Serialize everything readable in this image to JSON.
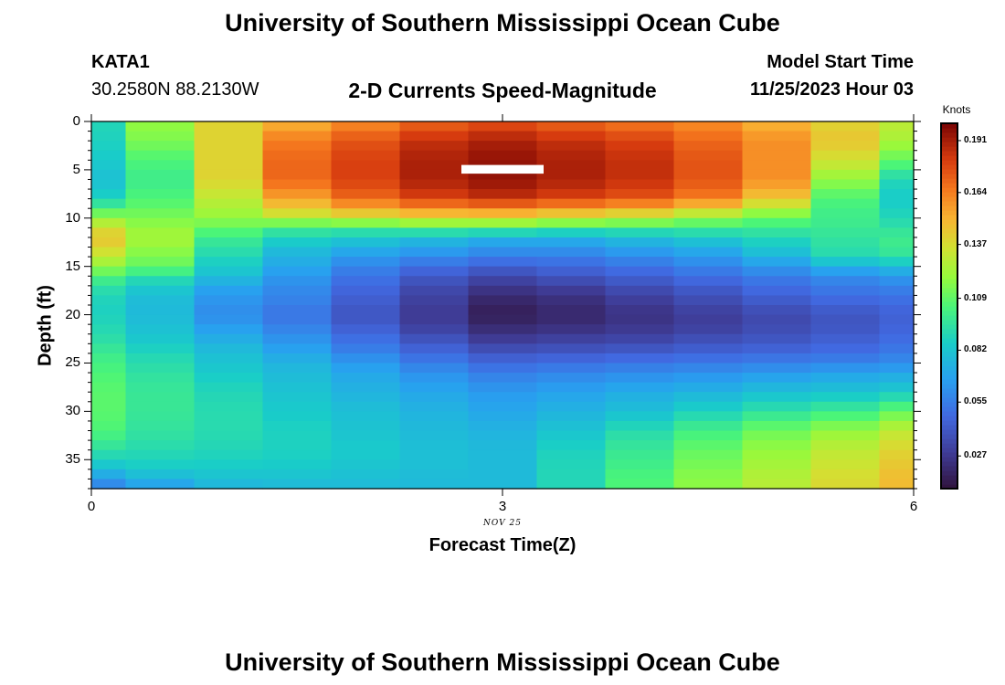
{
  "page": {
    "title_top": "University of Southern Mississippi Ocean Cube",
    "title_bottom": "University of Southern Mississippi Ocean Cube",
    "station_id": "KATA1",
    "coordinates": "30.2580N  88.2130W",
    "plot_title": "2-D Currents Speed-Magnitude",
    "model_start_label": "Model Start Time",
    "model_start_value": "11/25/2023 Hour 03",
    "date_label": "NOV 25",
    "colorbar_title": "Knots"
  },
  "chart_data": {
    "type": "heatmap",
    "title": "2-D Currents Speed-Magnitude",
    "xlabel": "Forecast Time(Z)",
    "ylabel": "Depth (ft)",
    "xlim": [
      0,
      6
    ],
    "ylim": [
      0,
      38
    ],
    "y_inverted": true,
    "x_ticks": [
      "0",
      "3",
      "6"
    ],
    "y_ticks": [
      "0",
      "5",
      "10",
      "15",
      "20",
      "25",
      "30",
      "35"
    ],
    "colorbar_ticks": [
      "0.191",
      "0.164",
      "0.137",
      "0.109",
      "0.082",
      "0.055",
      "0.027"
    ],
    "colorbar_range": [
      0.01,
      0.2
    ],
    "colorbar_label": "Knots",
    "x_centers": [
      0,
      0.5,
      1,
      1.5,
      2,
      2.5,
      3,
      3.5,
      4,
      4.5,
      5,
      5.5,
      6
    ],
    "depth_samples": [
      0,
      2,
      4,
      6,
      8,
      10,
      11,
      12,
      13,
      14,
      15,
      16,
      17,
      18,
      19,
      20,
      21,
      22,
      23,
      24,
      25,
      26,
      28,
      30,
      32,
      34,
      36,
      37,
      38
    ],
    "speed_knots": [
      [
        0.09,
        0.12,
        0.14,
        0.15,
        0.16,
        0.17,
        0.175,
        0.17,
        0.165,
        0.16,
        0.15,
        0.14,
        0.13
      ],
      [
        0.088,
        0.115,
        0.14,
        0.165,
        0.175,
        0.185,
        0.19,
        0.185,
        0.18,
        0.17,
        0.16,
        0.145,
        0.125
      ],
      [
        0.085,
        0.105,
        0.14,
        0.17,
        0.18,
        0.19,
        0.195,
        0.19,
        0.185,
        0.175,
        0.16,
        0.135,
        0.11
      ],
      [
        0.08,
        0.1,
        0.14,
        0.17,
        0.18,
        0.19,
        0.195,
        0.19,
        0.185,
        0.175,
        0.16,
        0.12,
        0.09
      ],
      [
        0.088,
        0.105,
        0.13,
        0.155,
        0.17,
        0.18,
        0.185,
        0.18,
        0.175,
        0.165,
        0.145,
        0.105,
        0.085
      ],
      [
        0.12,
        0.115,
        0.12,
        0.13,
        0.135,
        0.14,
        0.14,
        0.135,
        0.13,
        0.12,
        0.11,
        0.1,
        0.09
      ],
      [
        0.135,
        0.12,
        0.11,
        0.1,
        0.1,
        0.105,
        0.105,
        0.1,
        0.1,
        0.1,
        0.1,
        0.1,
        0.095
      ],
      [
        0.145,
        0.125,
        0.1,
        0.09,
        0.085,
        0.08,
        0.075,
        0.075,
        0.08,
        0.085,
        0.09,
        0.095,
        0.1
      ],
      [
        0.14,
        0.12,
        0.095,
        0.08,
        0.075,
        0.07,
        0.065,
        0.065,
        0.07,
        0.075,
        0.085,
        0.095,
        0.1
      ],
      [
        0.13,
        0.115,
        0.09,
        0.075,
        0.065,
        0.06,
        0.055,
        0.055,
        0.06,
        0.065,
        0.075,
        0.09,
        0.095
      ],
      [
        0.12,
        0.11,
        0.085,
        0.07,
        0.058,
        0.05,
        0.045,
        0.048,
        0.052,
        0.058,
        0.065,
        0.075,
        0.08
      ],
      [
        0.105,
        0.095,
        0.08,
        0.065,
        0.052,
        0.042,
        0.035,
        0.04,
        0.045,
        0.05,
        0.055,
        0.06,
        0.065
      ],
      [
        0.095,
        0.085,
        0.07,
        0.06,
        0.048,
        0.036,
        0.028,
        0.032,
        0.038,
        0.044,
        0.05,
        0.055,
        0.058
      ],
      [
        0.09,
        0.08,
        0.065,
        0.058,
        0.045,
        0.032,
        0.022,
        0.025,
        0.032,
        0.038,
        0.045,
        0.05,
        0.052
      ],
      [
        0.088,
        0.078,
        0.062,
        0.055,
        0.042,
        0.03,
        0.018,
        0.022,
        0.028,
        0.034,
        0.04,
        0.045,
        0.048
      ],
      [
        0.088,
        0.078,
        0.06,
        0.052,
        0.04,
        0.028,
        0.016,
        0.02,
        0.025,
        0.03,
        0.035,
        0.04,
        0.045
      ],
      [
        0.09,
        0.08,
        0.065,
        0.055,
        0.042,
        0.03,
        0.02,
        0.022,
        0.026,
        0.03,
        0.035,
        0.04,
        0.045
      ],
      [
        0.092,
        0.082,
        0.07,
        0.06,
        0.048,
        0.035,
        0.025,
        0.028,
        0.03,
        0.034,
        0.038,
        0.042,
        0.048
      ],
      [
        0.095,
        0.085,
        0.075,
        0.065,
        0.052,
        0.042,
        0.032,
        0.034,
        0.036,
        0.04,
        0.042,
        0.046,
        0.05
      ],
      [
        0.1,
        0.09,
        0.08,
        0.07,
        0.058,
        0.048,
        0.04,
        0.042,
        0.044,
        0.046,
        0.048,
        0.05,
        0.055
      ],
      [
        0.102,
        0.092,
        0.082,
        0.075,
        0.065,
        0.055,
        0.048,
        0.05,
        0.052,
        0.054,
        0.056,
        0.058,
        0.06
      ],
      [
        0.105,
        0.095,
        0.085,
        0.078,
        0.07,
        0.062,
        0.055,
        0.058,
        0.06,
        0.062,
        0.065,
        0.068,
        0.07
      ],
      [
        0.108,
        0.098,
        0.09,
        0.082,
        0.075,
        0.07,
        0.065,
        0.068,
        0.072,
        0.075,
        0.08,
        0.082,
        0.085
      ],
      [
        0.108,
        0.098,
        0.092,
        0.085,
        0.08,
        0.075,
        0.07,
        0.075,
        0.08,
        0.088,
        0.095,
        0.1,
        0.11
      ],
      [
        0.105,
        0.096,
        0.092,
        0.088,
        0.082,
        0.078,
        0.075,
        0.082,
        0.092,
        0.102,
        0.112,
        0.12,
        0.13
      ],
      [
        0.095,
        0.092,
        0.09,
        0.088,
        0.085,
        0.08,
        0.078,
        0.088,
        0.098,
        0.11,
        0.12,
        0.13,
        0.14
      ],
      [
        0.08,
        0.085,
        0.085,
        0.085,
        0.082,
        0.08,
        0.078,
        0.09,
        0.102,
        0.115,
        0.125,
        0.135,
        0.145
      ],
      [
        0.065,
        0.075,
        0.08,
        0.08,
        0.08,
        0.078,
        0.078,
        0.09,
        0.105,
        0.118,
        0.128,
        0.138,
        0.148
      ],
      [
        0.055,
        0.065,
        0.075,
        0.078,
        0.078,
        0.078,
        0.078,
        0.09,
        0.105,
        0.118,
        0.128,
        0.138,
        0.148
      ]
    ],
    "missing_segment": {
      "x_from": 2.7,
      "x_to": 3.3,
      "depth_from": 4.5,
      "depth_to": 5.4
    }
  }
}
